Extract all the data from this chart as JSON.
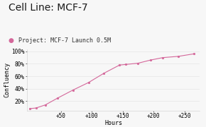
{
  "title": "Cell Line: MCF-7",
  "legend_label": "Project: MCF-7 Launch 0.5M",
  "xlabel": "Hours",
  "ylabel": "Confluency",
  "line_color": "#d4679a",
  "marker_color": "#d4679a",
  "background_color": "#f7f7f7",
  "x": [
    0,
    10,
    25,
    45,
    70,
    95,
    120,
    145,
    155,
    175,
    195,
    215,
    240,
    265
  ],
  "y": [
    0.08,
    0.09,
    0.14,
    0.25,
    0.38,
    0.5,
    0.65,
    0.78,
    0.79,
    0.81,
    0.86,
    0.9,
    0.92,
    0.96
  ],
  "xticks": [
    50,
    100,
    150,
    200,
    250
  ],
  "xtick_labels": [
    "+50",
    "+100",
    "+150",
    "+200",
    "+250"
  ],
  "yticks": [
    0.2,
    0.4,
    0.6,
    0.8,
    1.0
  ],
  "ytick_labels": [
    "20%",
    "40%",
    "60%",
    "80%",
    "100%"
  ],
  "ylim": [
    0.05,
    1.03
  ],
  "xlim": [
    -5,
    275
  ],
  "title_fontsize": 10,
  "label_fontsize": 6,
  "tick_fontsize": 5.5,
  "legend_fontsize": 6
}
